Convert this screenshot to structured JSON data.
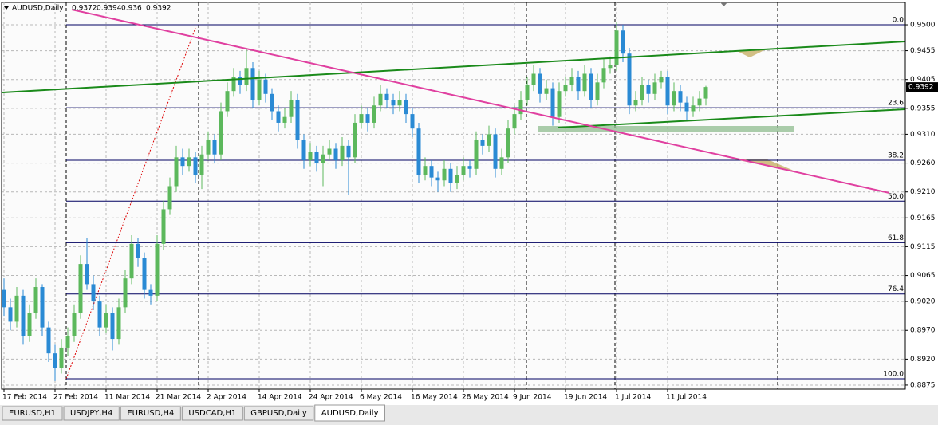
{
  "chart_data": {
    "type": "candlestick",
    "title": "AUDUSD,Daily",
    "bull_color": "#5cb85c",
    "bear_color": "#2a8ad4",
    "grid": true,
    "ylim": [
      0.8868,
      0.9536
    ],
    "yticks": [
      {
        "value": 0.95,
        "label": "0.9500"
      },
      {
        "value": 0.9455,
        "label": "0.9455"
      },
      {
        "value": 0.9405,
        "label": "0.9405"
      },
      {
        "value": 0.9355,
        "label": "0.9355"
      },
      {
        "value": 0.931,
        "label": "0.9310"
      },
      {
        "value": 0.926,
        "label": "0.9260"
      },
      {
        "value": 0.921,
        "label": "0.9210"
      },
      {
        "value": 0.9165,
        "label": "0.9165"
      },
      {
        "value": 0.9115,
        "label": "0.9115"
      },
      {
        "value": 0.9065,
        "label": "0.9065"
      },
      {
        "value": 0.902,
        "label": "0.9020"
      },
      {
        "value": 0.897,
        "label": "0.8970"
      },
      {
        "value": 0.892,
        "label": "0.8920"
      },
      {
        "value": 0.8875,
        "label": "0.8875"
      }
    ],
    "fib_levels": [
      {
        "label": "0.0",
        "value": 0.95
      },
      {
        "label": "23.6",
        "value": 0.9356
      },
      {
        "label": "38.2",
        "value": 0.9265
      },
      {
        "label": "50.0",
        "value": 0.9194
      },
      {
        "label": "61.8",
        "value": 0.9122
      },
      {
        "label": "76.4",
        "value": 0.9033
      },
      {
        "label": "100.0",
        "value": 0.8886
      }
    ],
    "categories": [
      "17 Feb 2014",
      null,
      null,
      null,
      null,
      null,
      null,
      null,
      "27 Feb 2014",
      null,
      null,
      null,
      null,
      null,
      null,
      null,
      "11 Mar 2014",
      null,
      null,
      null,
      null,
      null,
      null,
      null,
      "21 Mar 2014",
      null,
      null,
      null,
      null,
      null,
      null,
      null,
      "2 Apr 2014",
      null,
      null,
      null,
      null,
      null,
      null,
      null,
      "14 Apr 2014",
      null,
      null,
      null,
      null,
      null,
      null,
      null,
      "24 Apr 2014",
      null,
      null,
      null,
      null,
      null,
      null,
      null,
      "6 May 2014",
      null,
      null,
      null,
      null,
      null,
      null,
      null,
      "16 May 2014",
      null,
      null,
      null,
      null,
      null,
      null,
      null,
      "28 May 2014",
      null,
      null,
      null,
      null,
      null,
      null,
      null,
      "9 Jun 2014",
      null,
      null,
      null,
      null,
      null,
      null,
      null,
      "19 Jun 2014",
      null,
      null,
      null,
      null,
      null,
      null,
      null,
      "1 Jul 2014",
      null,
      null,
      null,
      null,
      null,
      null,
      null,
      "11 Jul 2014",
      null,
      null,
      null,
      null,
      null,
      null
    ],
    "candles": [
      [
        0.904,
        0.906,
        0.8995,
        0.901
      ],
      [
        0.901,
        0.9025,
        0.897,
        0.8985
      ],
      [
        0.8985,
        0.9045,
        0.8975,
        0.903
      ],
      [
        0.903,
        0.904,
        0.8945,
        0.896
      ],
      [
        0.896,
        0.9015,
        0.895,
        0.9
      ],
      [
        0.9,
        0.906,
        0.899,
        0.9045
      ],
      [
        0.9045,
        0.905,
        0.896,
        0.8975
      ],
      [
        0.8975,
        0.8985,
        0.8915,
        0.893
      ],
      [
        0.893,
        0.8945,
        0.8882,
        0.8905
      ],
      [
        0.8905,
        0.8955,
        0.8895,
        0.894
      ],
      [
        0.894,
        0.8975,
        0.8925,
        0.896
      ],
      [
        0.896,
        0.9015,
        0.895,
        0.9
      ],
      [
        0.9,
        0.91,
        0.899,
        0.9085
      ],
      [
        0.9085,
        0.913,
        0.904,
        0.905
      ],
      [
        0.905,
        0.9065,
        0.9005,
        0.902
      ],
      [
        0.902,
        0.903,
        0.896,
        0.8975
      ],
      [
        0.8975,
        0.9015,
        0.8965,
        0.9
      ],
      [
        0.9,
        0.901,
        0.8935,
        0.8955
      ],
      [
        0.8955,
        0.9025,
        0.8945,
        0.901
      ],
      [
        0.901,
        0.9075,
        0.9,
        0.906
      ],
      [
        0.906,
        0.9135,
        0.905,
        0.912
      ],
      [
        0.912,
        0.913,
        0.908,
        0.9095
      ],
      [
        0.9095,
        0.9105,
        0.9025,
        0.904
      ],
      [
        0.904,
        0.905,
        0.9015,
        0.903
      ],
      [
        0.903,
        0.9135,
        0.902,
        0.912
      ],
      [
        0.912,
        0.9195,
        0.911,
        0.918
      ],
      [
        0.918,
        0.9235,
        0.917,
        0.922
      ],
      [
        0.922,
        0.929,
        0.921,
        0.927
      ],
      [
        0.927,
        0.9285,
        0.924,
        0.9255
      ],
      [
        0.9255,
        0.9285,
        0.9245,
        0.927
      ],
      [
        0.927,
        0.928,
        0.9225,
        0.924
      ],
      [
        0.924,
        0.929,
        0.9215,
        0.9275
      ],
      [
        0.9275,
        0.9315,
        0.9265,
        0.93
      ],
      [
        0.93,
        0.931,
        0.926,
        0.9275
      ],
      [
        0.9275,
        0.9365,
        0.9265,
        0.935
      ],
      [
        0.935,
        0.94,
        0.934,
        0.9385
      ],
      [
        0.9385,
        0.9425,
        0.9375,
        0.941
      ],
      [
        0.941,
        0.942,
        0.938,
        0.9395
      ],
      [
        0.9395,
        0.946,
        0.9385,
        0.9425
      ],
      [
        0.9425,
        0.9435,
        0.9355,
        0.937
      ],
      [
        0.937,
        0.942,
        0.936,
        0.9405
      ],
      [
        0.9405,
        0.9415,
        0.9365,
        0.938
      ],
      [
        0.938,
        0.939,
        0.9335,
        0.935
      ],
      [
        0.935,
        0.936,
        0.9315,
        0.933
      ],
      [
        0.933,
        0.9355,
        0.932,
        0.934
      ],
      [
        0.934,
        0.9385,
        0.933,
        0.937
      ],
      [
        0.937,
        0.938,
        0.9285,
        0.93
      ],
      [
        0.93,
        0.931,
        0.925,
        0.9265
      ],
      [
        0.9265,
        0.9295,
        0.9255,
        0.928
      ],
      [
        0.928,
        0.929,
        0.9245,
        0.926
      ],
      [
        0.926,
        0.929,
        0.922,
        0.9275
      ],
      [
        0.9275,
        0.93,
        0.9265,
        0.9285
      ],
      [
        0.9285,
        0.9295,
        0.925,
        0.9265
      ],
      [
        0.9265,
        0.9305,
        0.9255,
        0.929
      ],
      [
        0.929,
        0.93,
        0.9205,
        0.927
      ],
      [
        0.927,
        0.9345,
        0.926,
        0.933
      ],
      [
        0.933,
        0.936,
        0.932,
        0.9345
      ],
      [
        0.9345,
        0.9355,
        0.9315,
        0.933
      ],
      [
        0.933,
        0.9375,
        0.932,
        0.936
      ],
      [
        0.936,
        0.9395,
        0.935,
        0.938
      ],
      [
        0.938,
        0.939,
        0.9355,
        0.937
      ],
      [
        0.937,
        0.938,
        0.9345,
        0.936
      ],
      [
        0.936,
        0.9385,
        0.935,
        0.937
      ],
      [
        0.937,
        0.938,
        0.933,
        0.9345
      ],
      [
        0.9345,
        0.9355,
        0.9305,
        0.932
      ],
      [
        0.932,
        0.933,
        0.9225,
        0.924
      ],
      [
        0.924,
        0.927,
        0.923,
        0.9255
      ],
      [
        0.9255,
        0.9265,
        0.922,
        0.9235
      ],
      [
        0.9235,
        0.9245,
        0.921,
        0.923
      ],
      [
        0.923,
        0.9265,
        0.922,
        0.925
      ],
      [
        0.925,
        0.926,
        0.921,
        0.9225
      ],
      [
        0.9225,
        0.9255,
        0.9215,
        0.924
      ],
      [
        0.924,
        0.927,
        0.923,
        0.9255
      ],
      [
        0.9255,
        0.9265,
        0.9235,
        0.925
      ],
      [
        0.925,
        0.9315,
        0.924,
        0.93
      ],
      [
        0.93,
        0.931,
        0.9275,
        0.929
      ],
      [
        0.929,
        0.9325,
        0.928,
        0.931
      ],
      [
        0.931,
        0.932,
        0.9235,
        0.925
      ],
      [
        0.925,
        0.9285,
        0.924,
        0.927
      ],
      [
        0.927,
        0.9335,
        0.926,
        0.932
      ],
      [
        0.932,
        0.936,
        0.931,
        0.9345
      ],
      [
        0.9345,
        0.9385,
        0.9335,
        0.937
      ],
      [
        0.937,
        0.941,
        0.936,
        0.9395
      ],
      [
        0.9395,
        0.943,
        0.9385,
        0.9415
      ],
      [
        0.9415,
        0.9425,
        0.9365,
        0.938
      ],
      [
        0.938,
        0.9405,
        0.937,
        0.939
      ],
      [
        0.939,
        0.94,
        0.9325,
        0.934
      ],
      [
        0.934,
        0.94,
        0.933,
        0.9385
      ],
      [
        0.9385,
        0.941,
        0.9375,
        0.9395
      ],
      [
        0.9395,
        0.9425,
        0.9385,
        0.941
      ],
      [
        0.941,
        0.942,
        0.937,
        0.9385
      ],
      [
        0.9385,
        0.943,
        0.9375,
        0.9415
      ],
      [
        0.9415,
        0.9425,
        0.9355,
        0.937
      ],
      [
        0.937,
        0.9415,
        0.936,
        0.94
      ],
      [
        0.94,
        0.944,
        0.939,
        0.9425
      ],
      [
        0.9425,
        0.9445,
        0.9415,
        0.943
      ],
      [
        0.943,
        0.9505,
        0.942,
        0.949
      ],
      [
        0.949,
        0.95,
        0.9435,
        0.945
      ],
      [
        0.945,
        0.946,
        0.9345,
        0.936
      ],
      [
        0.936,
        0.9385,
        0.935,
        0.937
      ],
      [
        0.937,
        0.941,
        0.936,
        0.9395
      ],
      [
        0.9395,
        0.9405,
        0.9365,
        0.938
      ],
      [
        0.938,
        0.9415,
        0.937,
        0.94
      ],
      [
        0.94,
        0.942,
        0.939,
        0.941
      ],
      [
        0.941,
        0.942,
        0.9345,
        0.936
      ],
      [
        0.936,
        0.94,
        0.935,
        0.9385
      ],
      [
        0.9385,
        0.9395,
        0.935,
        0.9365
      ],
      [
        0.9365,
        0.9375,
        0.9335,
        0.935
      ],
      [
        0.935,
        0.9375,
        0.934,
        0.936
      ],
      [
        0.936,
        0.9385,
        0.935,
        0.9372
      ],
      [
        0.9372,
        0.9394,
        0.936,
        0.9392
      ]
    ],
    "tabs": [
      "EURUSD,H1",
      "USDJPY,H4",
      "EURUSD,H4",
      "USDCAD,H1",
      "GBPUSD,Daily",
      "AUDUSD,Daily"
    ],
    "active_tab": 5
  }
}
